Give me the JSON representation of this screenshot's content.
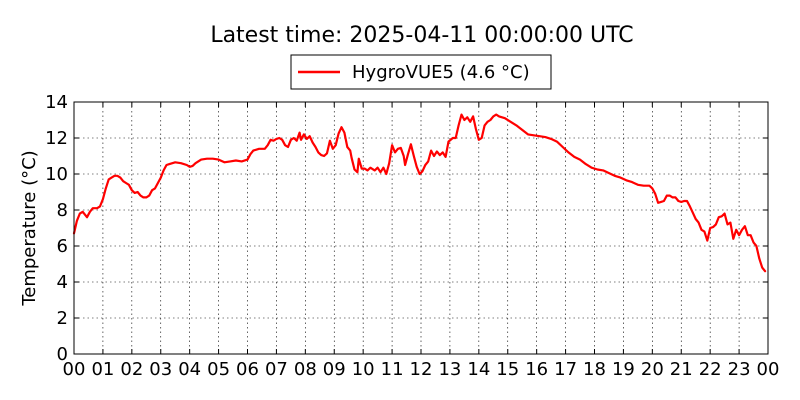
{
  "chart_data": {
    "type": "line",
    "title": "Latest time: 2025-04-11 00:00:00 UTC",
    "xlabel": "",
    "ylabel": "Temperature (°C)",
    "ylim": [
      0,
      14
    ],
    "xlim": [
      0,
      24
    ],
    "yticks": [
      0,
      2,
      4,
      6,
      8,
      10,
      12,
      14
    ],
    "xtick_labels": [
      "00",
      "01",
      "02",
      "03",
      "04",
      "05",
      "06",
      "07",
      "08",
      "09",
      "10",
      "11",
      "12",
      "13",
      "14",
      "15",
      "16",
      "17",
      "18",
      "19",
      "20",
      "21",
      "22",
      "23",
      "00"
    ],
    "grid": true,
    "legend_position": "top-center",
    "series": [
      {
        "name": "HygroVUE5 (4.6 °C)",
        "color": "#ff0000",
        "points": [
          [
            0.0,
            6.7
          ],
          [
            0.1,
            7.4
          ],
          [
            0.2,
            7.8
          ],
          [
            0.3,
            7.9
          ],
          [
            0.4,
            7.7
          ],
          [
            0.45,
            7.6
          ],
          [
            0.55,
            7.9
          ],
          [
            0.65,
            8.1
          ],
          [
            0.8,
            8.1
          ],
          [
            0.9,
            8.2
          ],
          [
            1.0,
            8.6
          ],
          [
            1.1,
            9.2
          ],
          [
            1.2,
            9.7
          ],
          [
            1.3,
            9.8
          ],
          [
            1.4,
            9.9
          ],
          [
            1.5,
            9.9
          ],
          [
            1.6,
            9.8
          ],
          [
            1.7,
            9.6
          ],
          [
            1.8,
            9.5
          ],
          [
            1.9,
            9.4
          ],
          [
            2.0,
            9.1
          ],
          [
            2.1,
            8.95
          ],
          [
            2.2,
            9.0
          ],
          [
            2.3,
            8.8
          ],
          [
            2.4,
            8.7
          ],
          [
            2.5,
            8.7
          ],
          [
            2.6,
            8.8
          ],
          [
            2.7,
            9.1
          ],
          [
            2.8,
            9.2
          ],
          [
            2.9,
            9.5
          ],
          [
            3.0,
            9.8
          ],
          [
            3.1,
            10.2
          ],
          [
            3.2,
            10.5
          ],
          [
            3.3,
            10.55
          ],
          [
            3.5,
            10.65
          ],
          [
            3.7,
            10.6
          ],
          [
            3.9,
            10.5
          ],
          [
            4.0,
            10.4
          ],
          [
            4.1,
            10.45
          ],
          [
            4.2,
            10.6
          ],
          [
            4.4,
            10.8
          ],
          [
            4.6,
            10.85
          ],
          [
            4.8,
            10.85
          ],
          [
            5.0,
            10.8
          ],
          [
            5.2,
            10.65
          ],
          [
            5.4,
            10.7
          ],
          [
            5.6,
            10.75
          ],
          [
            5.8,
            10.7
          ],
          [
            6.0,
            10.8
          ],
          [
            6.1,
            11.1
          ],
          [
            6.2,
            11.3
          ],
          [
            6.4,
            11.4
          ],
          [
            6.6,
            11.4
          ],
          [
            6.7,
            11.6
          ],
          [
            6.8,
            11.9
          ],
          [
            6.9,
            11.85
          ],
          [
            7.0,
            11.95
          ],
          [
            7.1,
            12.0
          ],
          [
            7.2,
            11.9
          ],
          [
            7.3,
            11.6
          ],
          [
            7.4,
            11.5
          ],
          [
            7.5,
            11.9
          ],
          [
            7.6,
            12.0
          ],
          [
            7.7,
            11.85
          ],
          [
            7.8,
            12.3
          ],
          [
            7.85,
            11.9
          ],
          [
            7.95,
            12.2
          ],
          [
            8.05,
            11.95
          ],
          [
            8.15,
            12.1
          ],
          [
            8.25,
            11.75
          ],
          [
            8.35,
            11.5
          ],
          [
            8.45,
            11.2
          ],
          [
            8.55,
            11.05
          ],
          [
            8.65,
            11.0
          ],
          [
            8.75,
            11.15
          ],
          [
            8.85,
            11.85
          ],
          [
            8.95,
            11.4
          ],
          [
            9.05,
            11.6
          ],
          [
            9.15,
            12.25
          ],
          [
            9.25,
            12.6
          ],
          [
            9.35,
            12.3
          ],
          [
            9.45,
            11.5
          ],
          [
            9.55,
            11.3
          ],
          [
            9.6,
            10.9
          ],
          [
            9.7,
            10.25
          ],
          [
            9.8,
            10.1
          ],
          [
            9.85,
            10.85
          ],
          [
            9.95,
            10.3
          ],
          [
            10.05,
            10.3
          ],
          [
            10.15,
            10.2
          ],
          [
            10.25,
            10.35
          ],
          [
            10.4,
            10.2
          ],
          [
            10.5,
            10.35
          ],
          [
            10.6,
            10.1
          ],
          [
            10.7,
            10.35
          ],
          [
            10.8,
            10.0
          ],
          [
            10.9,
            10.6
          ],
          [
            11.0,
            11.6
          ],
          [
            11.1,
            11.2
          ],
          [
            11.2,
            11.4
          ],
          [
            11.3,
            11.45
          ],
          [
            11.4,
            11.0
          ],
          [
            11.45,
            10.5
          ],
          [
            11.55,
            11.1
          ],
          [
            11.65,
            11.65
          ],
          [
            11.75,
            11.0
          ],
          [
            11.85,
            10.4
          ],
          [
            11.95,
            10.0
          ],
          [
            12.05,
            10.15
          ],
          [
            12.15,
            10.5
          ],
          [
            12.25,
            10.7
          ],
          [
            12.35,
            11.3
          ],
          [
            12.45,
            11.0
          ],
          [
            12.55,
            11.25
          ],
          [
            12.65,
            11.05
          ],
          [
            12.75,
            11.2
          ],
          [
            12.85,
            10.95
          ],
          [
            12.95,
            11.8
          ],
          [
            13.1,
            12.0
          ],
          [
            13.2,
            12.0
          ],
          [
            13.3,
            12.7
          ],
          [
            13.4,
            13.3
          ],
          [
            13.5,
            13.0
          ],
          [
            13.6,
            13.15
          ],
          [
            13.7,
            12.9
          ],
          [
            13.8,
            13.2
          ],
          [
            13.9,
            12.5
          ],
          [
            14.0,
            11.9
          ],
          [
            14.1,
            12.0
          ],
          [
            14.2,
            12.7
          ],
          [
            14.3,
            12.9
          ],
          [
            14.4,
            13.0
          ],
          [
            14.5,
            13.2
          ],
          [
            14.6,
            13.3
          ],
          [
            14.7,
            13.2
          ],
          [
            14.9,
            13.1
          ],
          [
            15.1,
            12.9
          ],
          [
            15.3,
            12.7
          ],
          [
            15.5,
            12.45
          ],
          [
            15.7,
            12.2
          ],
          [
            15.9,
            12.15
          ],
          [
            16.1,
            12.1
          ],
          [
            16.3,
            12.05
          ],
          [
            16.5,
            11.95
          ],
          [
            16.7,
            11.8
          ],
          [
            16.9,
            11.5
          ],
          [
            17.1,
            11.2
          ],
          [
            17.3,
            10.95
          ],
          [
            17.5,
            10.8
          ],
          [
            17.7,
            10.55
          ],
          [
            17.9,
            10.35
          ],
          [
            18.1,
            10.25
          ],
          [
            18.3,
            10.2
          ],
          [
            18.5,
            10.05
          ],
          [
            18.7,
            9.9
          ],
          [
            18.9,
            9.8
          ],
          [
            19.1,
            9.65
          ],
          [
            19.3,
            9.55
          ],
          [
            19.5,
            9.4
          ],
          [
            19.7,
            9.35
          ],
          [
            19.9,
            9.35
          ],
          [
            20.0,
            9.2
          ],
          [
            20.1,
            8.9
          ],
          [
            20.2,
            8.4
          ],
          [
            20.3,
            8.45
          ],
          [
            20.4,
            8.5
          ],
          [
            20.5,
            8.8
          ],
          [
            20.6,
            8.8
          ],
          [
            20.7,
            8.7
          ],
          [
            20.8,
            8.7
          ],
          [
            20.9,
            8.5
          ],
          [
            21.0,
            8.45
          ],
          [
            21.1,
            8.5
          ],
          [
            21.2,
            8.5
          ],
          [
            21.3,
            8.2
          ],
          [
            21.4,
            7.85
          ],
          [
            21.5,
            7.5
          ],
          [
            21.6,
            7.3
          ],
          [
            21.7,
            6.9
          ],
          [
            21.8,
            6.8
          ],
          [
            21.9,
            6.3
          ],
          [
            22.0,
            7.0
          ],
          [
            22.1,
            7.05
          ],
          [
            22.2,
            7.2
          ],
          [
            22.3,
            7.6
          ],
          [
            22.4,
            7.65
          ],
          [
            22.5,
            7.8
          ],
          [
            22.6,
            7.2
          ],
          [
            22.7,
            7.3
          ],
          [
            22.8,
            6.4
          ],
          [
            22.9,
            6.9
          ],
          [
            23.0,
            6.6
          ],
          [
            23.1,
            6.9
          ],
          [
            23.2,
            7.1
          ],
          [
            23.3,
            6.6
          ],
          [
            23.4,
            6.6
          ],
          [
            23.5,
            6.2
          ],
          [
            23.6,
            6.0
          ],
          [
            23.7,
            5.3
          ],
          [
            23.8,
            4.8
          ],
          [
            23.9,
            4.6
          ]
        ]
      }
    ]
  }
}
